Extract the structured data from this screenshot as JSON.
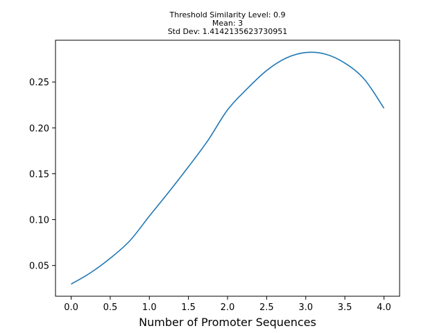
{
  "chart_data": {
    "type": "line",
    "title_lines": [
      "Threshold Similarity Level: 0.9",
      "Mean: 3",
      "Std Dev: 1.4142135623730951"
    ],
    "xlabel": "Number of Promoter Sequences",
    "ylabel": "",
    "xlim": [
      -0.2,
      4.2
    ],
    "ylim": [
      0.0165,
      0.2955
    ],
    "x_ticks": [
      0.0,
      0.5,
      1.0,
      1.5,
      2.0,
      2.5,
      3.0,
      3.5,
      4.0
    ],
    "x_tick_labels": [
      "0.0",
      "0.5",
      "1.0",
      "1.5",
      "2.0",
      "2.5",
      "3.0",
      "3.5",
      "4.0"
    ],
    "y_ticks": [
      0.05,
      0.1,
      0.15,
      0.2,
      0.25
    ],
    "y_tick_labels": [
      "0.05",
      "0.10",
      "0.15",
      "0.20",
      "0.25"
    ],
    "grid": false,
    "legend": "none",
    "series": [
      {
        "color": "#1f77b4",
        "x": [
          0.0,
          0.25,
          0.5,
          0.75,
          1.0,
          1.25,
          1.5,
          1.75,
          2.0,
          2.25,
          2.5,
          2.75,
          3.0,
          3.25,
          3.5,
          3.75,
          4.0
        ],
        "y": [
          0.0297,
          0.0422,
          0.0579,
          0.0769,
          0.1038,
          0.1302,
          0.1576,
          0.1864,
          0.2196,
          0.2426,
          0.2625,
          0.2761,
          0.2821,
          0.2804,
          0.2706,
          0.2529,
          0.2214
        ]
      }
    ]
  }
}
